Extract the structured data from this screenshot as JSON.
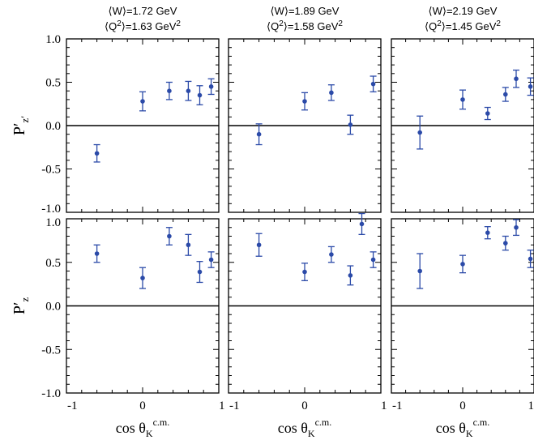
{
  "chart_data": {
    "type": "scatter",
    "layout": "2x3 grid of panels sharing x and y axes",
    "colors": {
      "points": "#2b4aa8",
      "axes": "#000000",
      "zero_line": "#000000"
    },
    "xlim": [
      -1,
      1
    ],
    "ylim": [
      -1,
      1
    ],
    "x_ticks": [
      "-1",
      "0",
      "1"
    ],
    "y_ticks": [
      "1.0",
      "0.5",
      "0.0",
      "-0.5",
      "-1.0"
    ],
    "y_tick_values": [
      1.0,
      0.5,
      0.0,
      -0.5,
      -1.0
    ],
    "x_tick_values": [
      -1,
      0,
      1
    ],
    "xlabel": {
      "main": "cos θ",
      "sub": "K",
      "sup": "c.m."
    },
    "row_ylabels": [
      {
        "main": "P′",
        "sub": "z′"
      },
      {
        "main": "P′",
        "sub": "z"
      }
    ],
    "columns": [
      {
        "w_label": "⟨W⟩=1.72 GeV",
        "q2_pre": "⟨Q",
        "q2_sup1": "2",
        "q2_mid": "⟩=1.63 GeV",
        "q2_sup2": "2"
      },
      {
        "w_label": "⟨W⟩=1.89 GeV",
        "q2_pre": "⟨Q",
        "q2_sup1": "2",
        "q2_mid": "⟩=1.58 GeV",
        "q2_sup2": "2"
      },
      {
        "w_label": "⟨W⟩=2.19 GeV",
        "q2_pre": "⟨Q",
        "q2_sup1": "2",
        "q2_mid": "⟩=1.45 GeV",
        "q2_sup2": "2"
      }
    ],
    "panels": [
      {
        "row": 0,
        "col": 0,
        "points": [
          {
            "x": -0.6,
            "y": -0.32,
            "err": 0.1
          },
          {
            "x": 0.0,
            "y": 0.28,
            "err": 0.11
          },
          {
            "x": 0.35,
            "y": 0.4,
            "err": 0.1
          },
          {
            "x": 0.6,
            "y": 0.4,
            "err": 0.11
          },
          {
            "x": 0.75,
            "y": 0.35,
            "err": 0.11
          },
          {
            "x": 0.9,
            "y": 0.45,
            "err": 0.09
          }
        ]
      },
      {
        "row": 0,
        "col": 1,
        "points": [
          {
            "x": -0.6,
            "y": -0.1,
            "err": 0.12
          },
          {
            "x": 0.0,
            "y": 0.28,
            "err": 0.1
          },
          {
            "x": 0.35,
            "y": 0.38,
            "err": 0.09
          },
          {
            "x": 0.6,
            "y": 0.01,
            "err": 0.11
          },
          {
            "x": 0.9,
            "y": 0.48,
            "err": 0.09
          }
        ]
      },
      {
        "row": 0,
        "col": 2,
        "points": [
          {
            "x": -0.6,
            "y": -0.08,
            "err": 0.19
          },
          {
            "x": 0.0,
            "y": 0.3,
            "err": 0.11
          },
          {
            "x": 0.35,
            "y": 0.14,
            "err": 0.07
          },
          {
            "x": 0.6,
            "y": 0.36,
            "err": 0.08
          },
          {
            "x": 0.75,
            "y": 0.54,
            "err": 0.1
          },
          {
            "x": 0.95,
            "y": 0.45,
            "err": 0.1
          }
        ]
      },
      {
        "row": 1,
        "col": 0,
        "points": [
          {
            "x": -0.6,
            "y": 0.6,
            "err": 0.1
          },
          {
            "x": 0.0,
            "y": 0.32,
            "err": 0.12
          },
          {
            "x": 0.35,
            "y": 0.8,
            "err": 0.1
          },
          {
            "x": 0.6,
            "y": 0.7,
            "err": 0.12
          },
          {
            "x": 0.75,
            "y": 0.39,
            "err": 0.12
          },
          {
            "x": 0.9,
            "y": 0.53,
            "err": 0.09
          }
        ]
      },
      {
        "row": 1,
        "col": 1,
        "points": [
          {
            "x": -0.6,
            "y": 0.7,
            "err": 0.13
          },
          {
            "x": 0.0,
            "y": 0.39,
            "err": 0.1
          },
          {
            "x": 0.35,
            "y": 0.59,
            "err": 0.09
          },
          {
            "x": 0.6,
            "y": 0.35,
            "err": 0.11
          },
          {
            "x": 0.75,
            "y": 0.94,
            "err": 0.12
          },
          {
            "x": 0.9,
            "y": 0.53,
            "err": 0.09
          }
        ]
      },
      {
        "row": 1,
        "col": 2,
        "points": [
          {
            "x": -0.6,
            "y": 0.4,
            "err": 0.2
          },
          {
            "x": 0.0,
            "y": 0.48,
            "err": 0.1
          },
          {
            "x": 0.35,
            "y": 0.84,
            "err": 0.07
          },
          {
            "x": 0.6,
            "y": 0.72,
            "err": 0.08
          },
          {
            "x": 0.75,
            "y": 0.9,
            "err": 0.09
          },
          {
            "x": 0.95,
            "y": 0.54,
            "err": 0.1
          }
        ]
      }
    ]
  }
}
